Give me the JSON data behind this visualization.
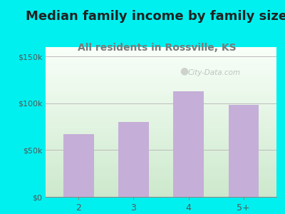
{
  "title": "Median family income by family size",
  "subtitle": "All residents in Rossville, KS",
  "categories": [
    "2",
    "3",
    "4",
    "5+"
  ],
  "values": [
    67000,
    80000,
    113000,
    98000
  ],
  "bar_color": "#c5aed8",
  "title_fontsize": 13,
  "subtitle_fontsize": 10,
  "subtitle_color": "#7a7a7a",
  "title_color": "#222222",
  "bg_outer": "#00f0f0",
  "plot_bg_top": "#f5fff5",
  "plot_bg_bottom": "#d8f0d8",
  "yticks": [
    0,
    50000,
    100000,
    150000
  ],
  "ytick_labels": [
    "$0",
    "$50k",
    "$100k",
    "$150k"
  ],
  "ylim": [
    0,
    160000
  ],
  "watermark": "City-Data.com"
}
